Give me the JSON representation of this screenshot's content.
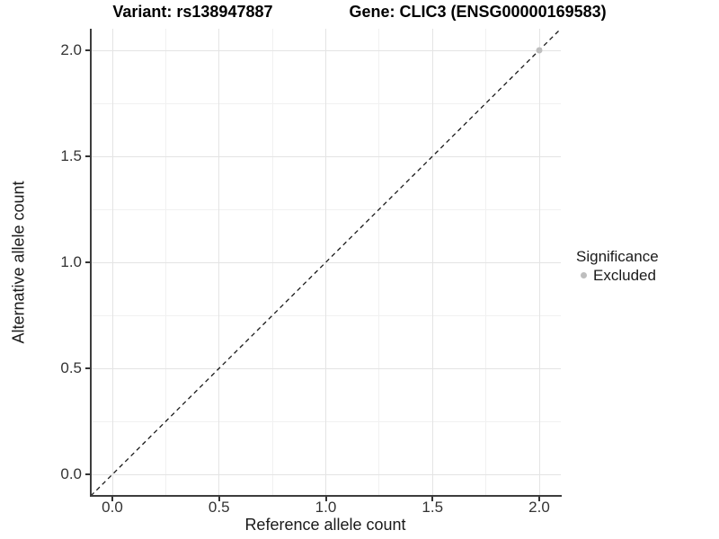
{
  "titles": {
    "left": "Variant: rs138947887",
    "right": "Gene: CLIC3 (ENSG00000169583)"
  },
  "axes": {
    "x_title": "Reference allele count",
    "y_title": "Alternative allele count",
    "x_tick_labels": [
      "0.0",
      "0.5",
      "1.0",
      "1.5",
      "2.0"
    ],
    "y_tick_labels": [
      "0.0",
      "0.5",
      "1.0",
      "1.5",
      "2.0"
    ]
  },
  "legend": {
    "title": "Significance",
    "items": [
      {
        "label": "Excluded",
        "color": "#bebebe"
      }
    ]
  },
  "colors": {
    "background": "#ffffff",
    "grid_major": "#e4e4e4",
    "grid_minor": "#f1f1f1",
    "axis_line": "#3d3d3d",
    "reference_line": "#1a1a1a",
    "excluded_point": "#bebebe"
  },
  "chart_data": {
    "type": "scatter",
    "title": "Variant: rs138947887   Gene: CLIC3 (ENSG00000169583)",
    "xlabel": "Reference allele count",
    "ylabel": "Alternative allele count",
    "xlim": [
      -0.1,
      2.1
    ],
    "ylim": [
      -0.1,
      2.1
    ],
    "x_ticks": [
      0.0,
      0.5,
      1.0,
      1.5,
      2.0
    ],
    "y_ticks": [
      0.0,
      0.5,
      1.0,
      1.5,
      2.0
    ],
    "minor_ticks": [
      0.25,
      0.75,
      1.25,
      1.75
    ],
    "grid": "major+minor",
    "legend_position": "right",
    "legend_title": "Significance",
    "series": [
      {
        "name": "Excluded",
        "color": "#bebebe",
        "points": [
          {
            "x": 2.0,
            "y": 2.0
          }
        ]
      }
    ],
    "reference_line": {
      "style": "dashed",
      "slope": 1,
      "intercept": 0,
      "comment_visible": false
    }
  }
}
